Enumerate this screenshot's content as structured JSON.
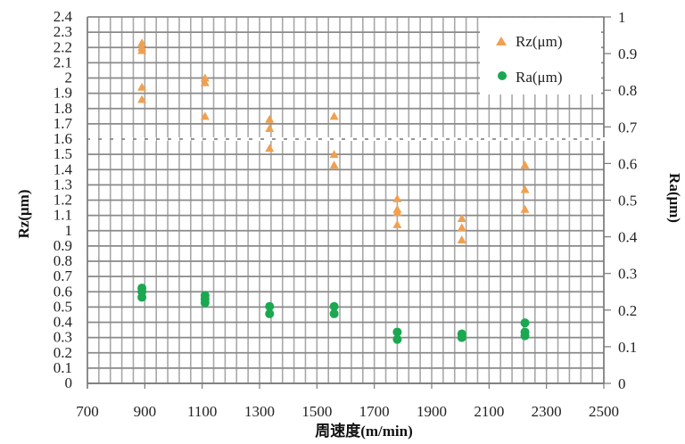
{
  "chart_data": {
    "type": "scatter",
    "xlabel": "周速度(m/min)",
    "ylabel_left": "Rz(μm)",
    "ylabel_right": "Ra(μm)",
    "xlim": [
      700,
      2500
    ],
    "ylim_left": [
      0,
      2.4
    ],
    "ylim_right": [
      0,
      1
    ],
    "x_ticks": [
      "700",
      "900",
      "1100",
      "1300",
      "1500",
      "1700",
      "1900",
      "2100",
      "2300",
      "2500"
    ],
    "y_left_ticks": [
      "0",
      "0.1",
      "0.2",
      "0.3",
      "0.4",
      "0.5",
      "0.6",
      "0.7",
      "0.8",
      "0.9",
      "1",
      "1.1",
      "1.2",
      "1.3",
      "1.4",
      "1.5",
      "1.6",
      "1.7",
      "1.8",
      "1.9",
      "2",
      "2.1",
      "2.2",
      "2.3",
      "2.4"
    ],
    "y_right_ticks": [
      "0",
      "0.1",
      "0.2",
      "0.3",
      "0.4",
      "0.5",
      "0.6",
      "0.7",
      "0.8",
      "0.9",
      "1"
    ],
    "axis_break_left": 1.6,
    "grid": true,
    "legend_position": "top-right",
    "series": [
      {
        "name": "Rz(μm)",
        "axis": "left",
        "marker": "triangle",
        "color": "#f0a050",
        "points": [
          [
            890,
            2.23
          ],
          [
            890,
            2.2
          ],
          [
            890,
            2.18
          ],
          [
            890,
            1.94
          ],
          [
            890,
            1.86
          ],
          [
            1110,
            2.0
          ],
          [
            1110,
            1.97
          ],
          [
            1110,
            1.75
          ],
          [
            1335,
            1.73
          ],
          [
            1335,
            1.67
          ],
          [
            1335,
            1.54
          ],
          [
            1560,
            1.75
          ],
          [
            1560,
            1.5
          ],
          [
            1560,
            1.43
          ],
          [
            1780,
            1.21
          ],
          [
            1780,
            1.14
          ],
          [
            1780,
            1.12
          ],
          [
            1780,
            1.04
          ],
          [
            2005,
            1.08
          ],
          [
            2005,
            1.02
          ],
          [
            2005,
            0.94
          ],
          [
            2225,
            1.43
          ],
          [
            2225,
            1.27
          ],
          [
            2225,
            1.14
          ]
        ]
      },
      {
        "name": "Ra(μm)",
        "axis": "right",
        "marker": "circle",
        "color": "#1aa850",
        "points": [
          [
            890,
            0.26
          ],
          [
            890,
            0.25
          ],
          [
            890,
            0.235
          ],
          [
            1110,
            0.24
          ],
          [
            1110,
            0.23
          ],
          [
            1110,
            0.22
          ],
          [
            1335,
            0.21
          ],
          [
            1335,
            0.19
          ],
          [
            1560,
            0.21
          ],
          [
            1560,
            0.19
          ],
          [
            1780,
            0.14
          ],
          [
            1780,
            0.12
          ],
          [
            2005,
            0.135
          ],
          [
            2005,
            0.125
          ],
          [
            2225,
            0.165
          ],
          [
            2225,
            0.14
          ],
          [
            2225,
            0.13
          ]
        ]
      }
    ]
  }
}
